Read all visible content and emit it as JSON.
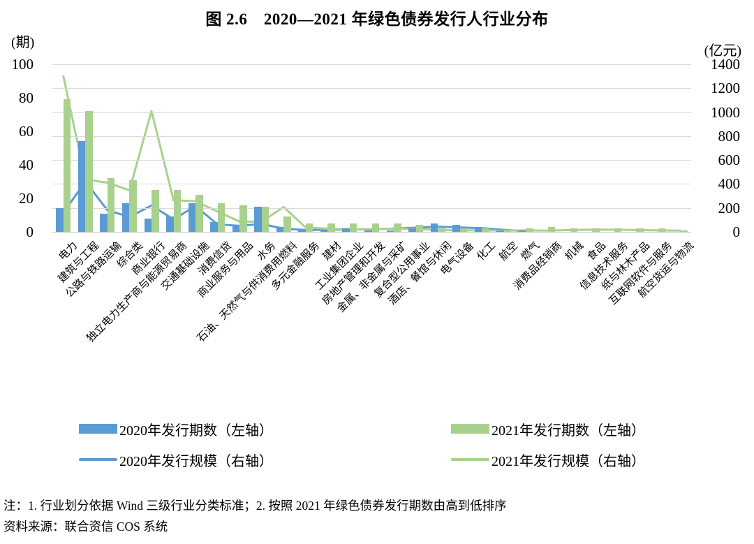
{
  "title": "图 2.6　2020—2021 年绿色债券发行人行业分布",
  "left_axis": {
    "unit": "(期)",
    "max": 100,
    "ticks": [
      100,
      80,
      60,
      40,
      20,
      0
    ]
  },
  "right_axis": {
    "unit": "(亿元)",
    "max": 1400,
    "ticks": [
      1400,
      1200,
      1000,
      800,
      600,
      400,
      200,
      0
    ]
  },
  "legend": [
    {
      "label": "2020年发行期数（左轴）",
      "type": "bar",
      "color": "#5B9BD5"
    },
    {
      "label": "2021年发行期数（左轴）",
      "type": "bar",
      "color": "#A9D18E"
    },
    {
      "label": "2020年发行规模（右轴）",
      "type": "line",
      "color": "#5B9BD5"
    },
    {
      "label": "2021年发行规模（右轴）",
      "type": "line",
      "color": "#A9D18E"
    }
  ],
  "notes": [
    "注：1. 行业划分依据 Wind 三级行业分类标准；2. 按照 2021 年绿色债券发行期数由高到低排序",
    "资料来源：联合资信 COS 系统"
  ],
  "chart_data": {
    "type": "bar",
    "subtype": "dual-axis bar+line combo",
    "title": "图 2.6　2020—2021 年绿色债券发行人行业分布",
    "left_ylabel": "(期)",
    "right_ylabel": "(亿元)",
    "left_ylim": [
      0,
      100
    ],
    "right_ylim": [
      0,
      1400
    ],
    "grid": "horizontal gridlines every 200 (right axis)",
    "gridline_color": "#D9D9D9",
    "legend_position": "bottom, two columns",
    "categories": [
      "电力",
      "建筑与工程",
      "公路与铁路运输",
      "综合类",
      "商业银行",
      "独立电力生产商与能源贸易商",
      "交通基础设施",
      "消费信贷",
      "商业服务与用品",
      "水务",
      "石油、天然气与供消费用燃料",
      "多元金融服务",
      "建材",
      "工业集团企业",
      "房地产管理和开发",
      "金属、非金属与采矿",
      "复合型公用事业",
      "酒店、餐馆与休闲",
      "电气设备",
      "化工",
      "航空",
      "燃气",
      "消费品经销商",
      "机械",
      "食品",
      "信息技术服务",
      "纸与林木产品",
      "互联网软件与服务",
      "航空货运与物流"
    ],
    "series": [
      {
        "name": "2020年发行期数（左轴）",
        "type": "bar",
        "axis": "left",
        "color": "#5B9BD5",
        "values": [
          14,
          54,
          11,
          17,
          8,
          9,
          17,
          6,
          4,
          15,
          3,
          1,
          1,
          2,
          1,
          1,
          2,
          5,
          4,
          3,
          1,
          1,
          0,
          0,
          0,
          0,
          0,
          0,
          0
        ]
      },
      {
        "name": "2021年发行期数（左轴）",
        "type": "bar",
        "axis": "left",
        "color": "#A9D18E",
        "values": [
          79,
          72,
          32,
          31,
          25,
          25,
          22,
          17,
          16,
          15,
          9,
          5,
          5,
          5,
          5,
          5,
          4,
          2,
          2,
          2,
          1,
          2,
          3,
          2,
          2,
          2,
          2,
          2,
          1
        ]
      },
      {
        "name": "2020年发行规模（右轴）",
        "type": "line",
        "axis": "right",
        "color": "#5B9BD5",
        "values": [
          160,
          420,
          180,
          125,
          220,
          105,
          215,
          62,
          50,
          66,
          27,
          15,
          17,
          21,
          21,
          28,
          35,
          43,
          37,
          31,
          17,
          5,
          null,
          null,
          null,
          null,
          null,
          null,
          null
        ]
      },
      {
        "name": "2021年发行规模（右轴）",
        "type": "line",
        "axis": "right",
        "color": "#A9D18E",
        "values": [
          1300,
          437,
          411,
          347,
          1010,
          265,
          255,
          170,
          85,
          85,
          207,
          37,
          27,
          21,
          23,
          27,
          25,
          15,
          12,
          12,
          10,
          12,
          10,
          15,
          18,
          18,
          15,
          12,
          10
        ]
      }
    ]
  }
}
